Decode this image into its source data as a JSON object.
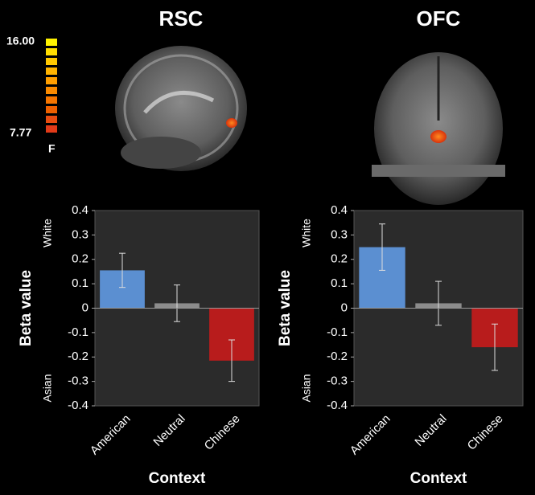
{
  "colorbar": {
    "max_label": "16.00",
    "min_label": "7.77",
    "unit": "F"
  },
  "chart_data": [
    {
      "type": "bar",
      "title": "RSC",
      "ylabel": "Beta value",
      "xlabel": "Context",
      "top_label": "White",
      "bottom_label": "Asian",
      "categories": [
        "American",
        "Neutral",
        "Chinese"
      ],
      "values": [
        0.155,
        0.02,
        -0.215
      ],
      "errors": [
        0.07,
        0.075,
        0.085
      ],
      "colors": [
        "#5b8fd1",
        "#8c8c8c",
        "#b81c1c"
      ],
      "ylim": [
        -0.4,
        0.4
      ],
      "yticks": [
        0.4,
        0.3,
        0.2,
        0.1,
        0,
        -0.1,
        -0.2,
        -0.3,
        -0.4
      ]
    },
    {
      "type": "bar",
      "title": "OFC",
      "ylabel": "Beta value",
      "xlabel": "Context",
      "top_label": "White",
      "bottom_label": "Asian",
      "categories": [
        "American",
        "Neutral",
        "Chinese"
      ],
      "values": [
        0.25,
        0.02,
        -0.16
      ],
      "errors": [
        0.095,
        0.09,
        0.095
      ],
      "colors": [
        "#5b8fd1",
        "#8c8c8c",
        "#b81c1c"
      ],
      "ylim": [
        -0.4,
        0.4
      ],
      "yticks": [
        0.4,
        0.3,
        0.2,
        0.1,
        0,
        -0.1,
        -0.2,
        -0.3,
        -0.4
      ]
    }
  ]
}
